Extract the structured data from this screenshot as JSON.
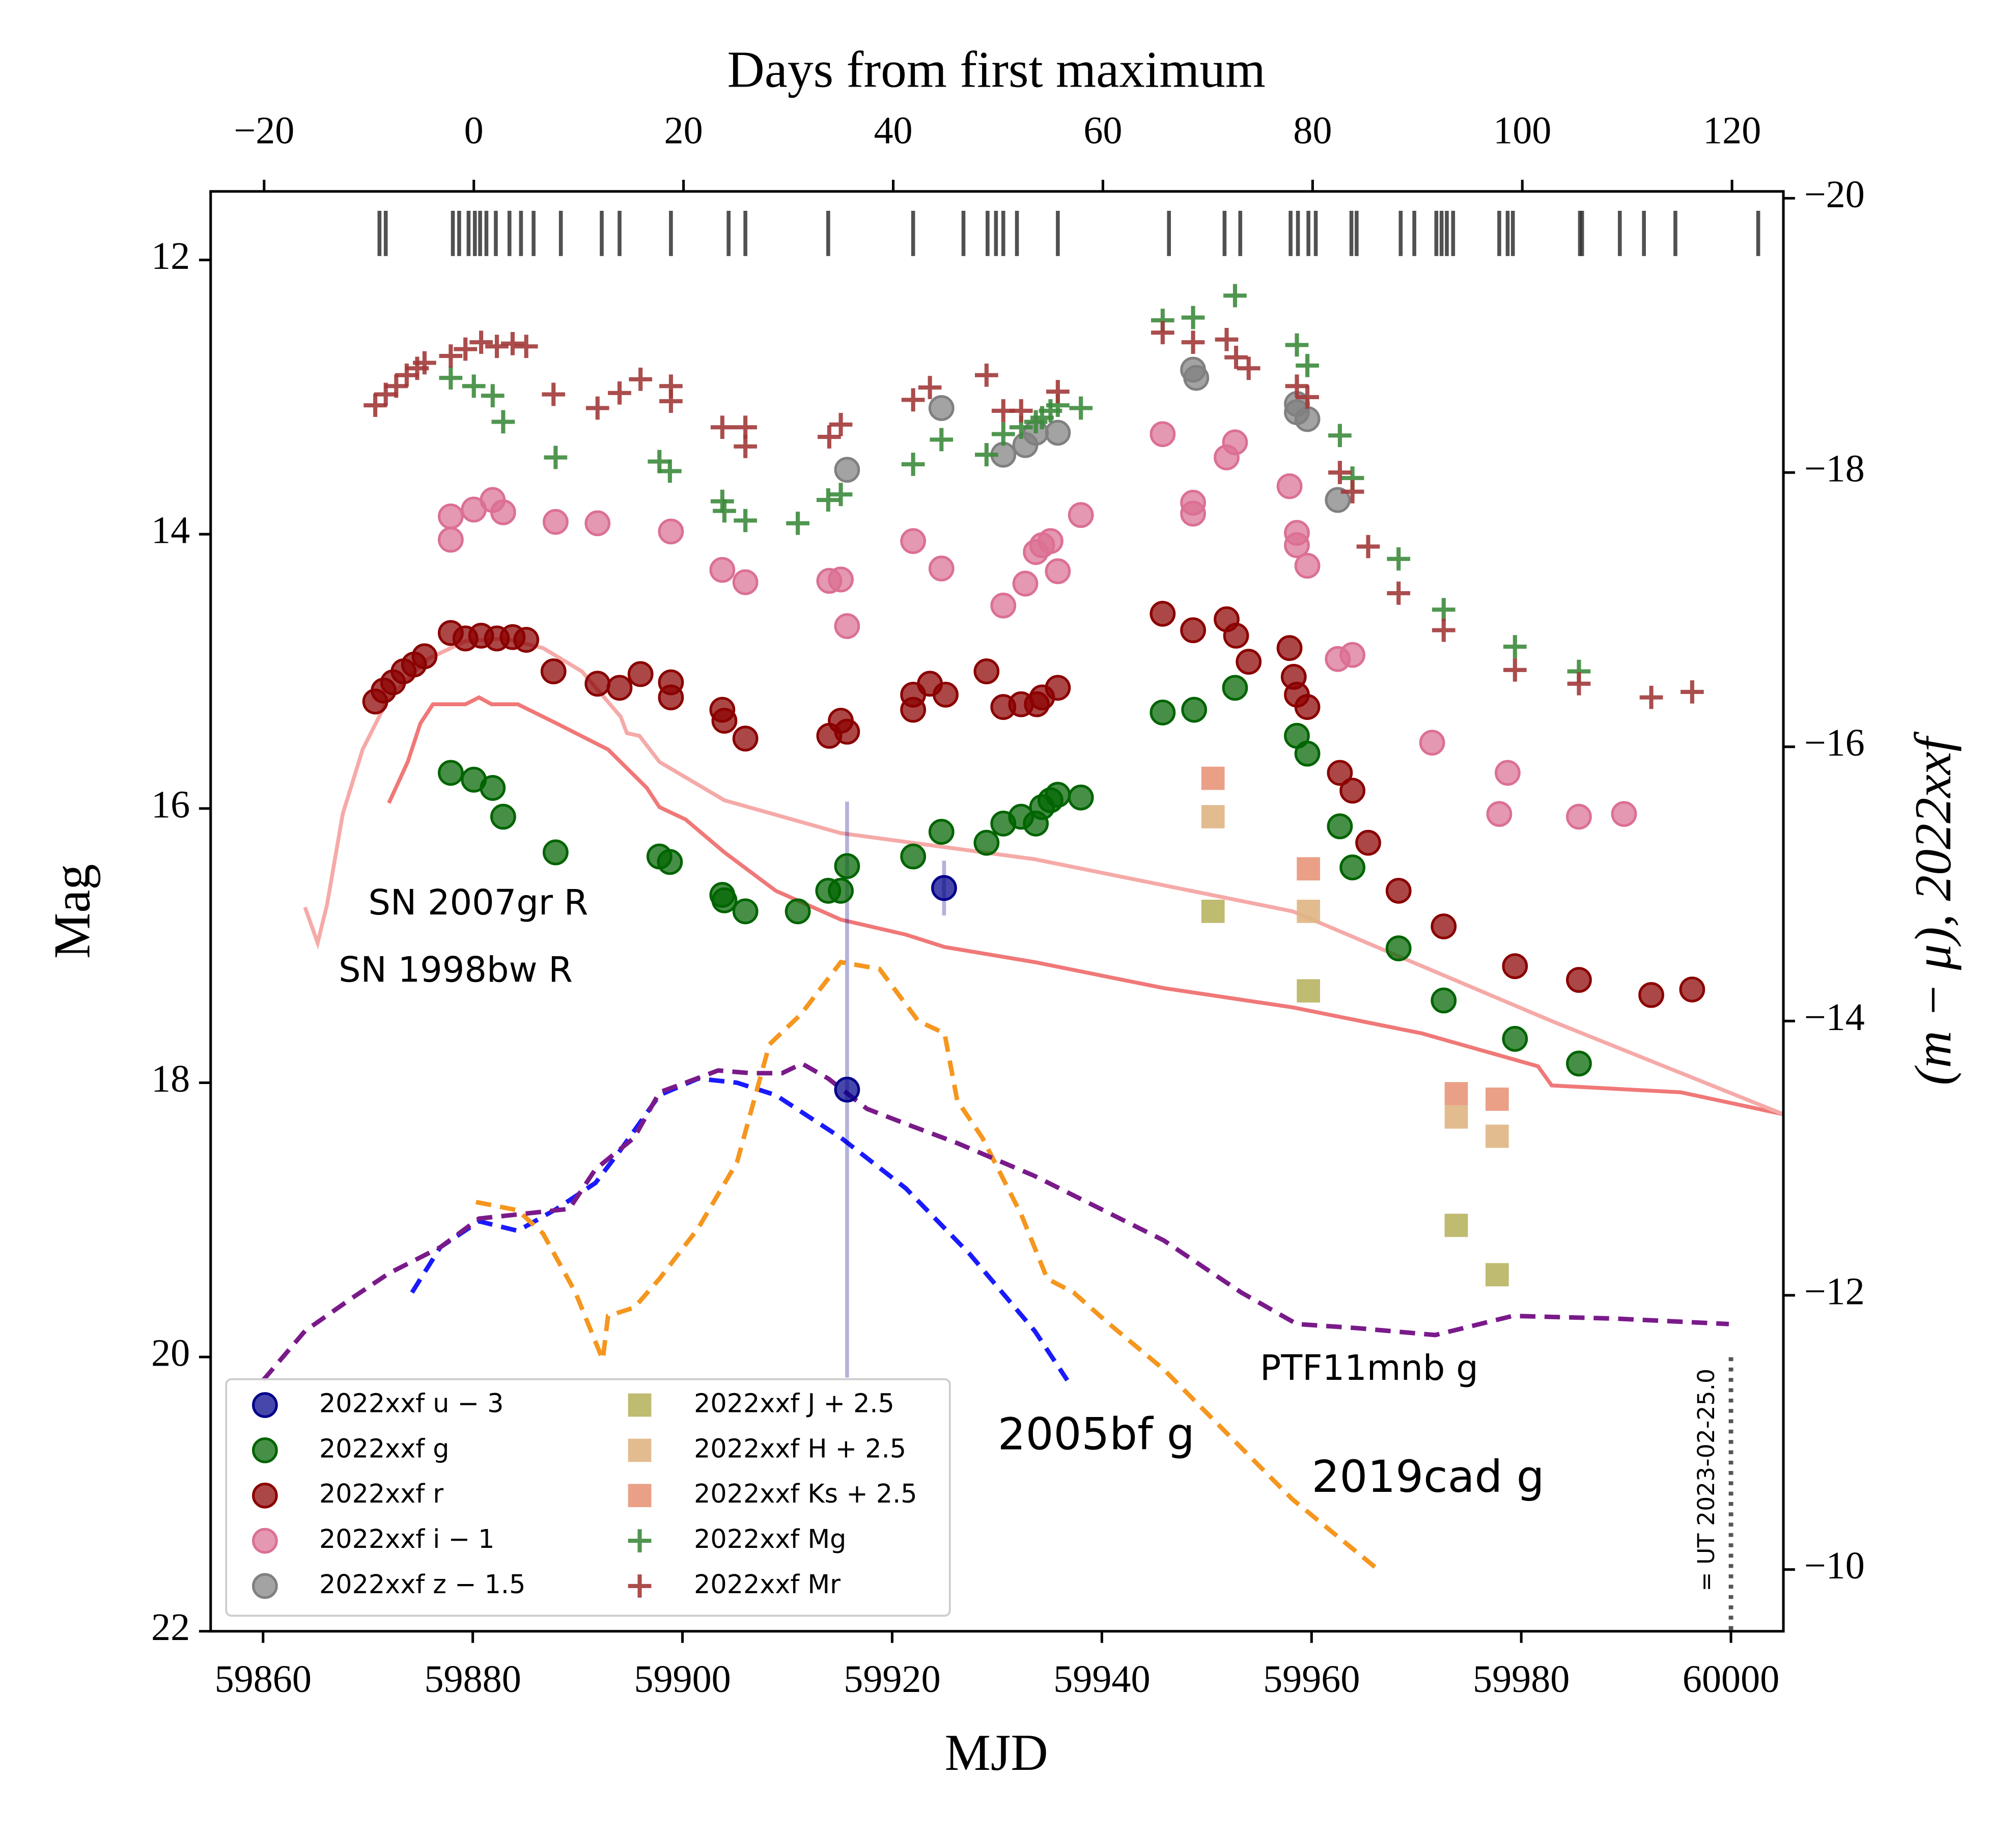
{
  "chart_data": {
    "type": "scatter",
    "xlabel": "MJD",
    "ylabel": "Mag",
    "top_xlabel": "Days from first maximum",
    "y2label": "(m − μ), 2022xxf",
    "xlim": [
      59855,
      60005
    ],
    "xticks": [
      59860,
      59880,
      59900,
      59920,
      59940,
      59960,
      59980,
      60000
    ],
    "ylim": [
      11.5,
      22
    ],
    "yticks": [
      12,
      14,
      16,
      18,
      20,
      22
    ],
    "y_inverted": true,
    "y2lim": [
      -20.05,
      -9.55
    ],
    "y2ticks": [
      {
        "value": -20,
        "label": "−20"
      },
      {
        "value": -18,
        "label": "−18"
      },
      {
        "value": -16,
        "label": "−16"
      },
      {
        "value": -14,
        "label": "−14"
      },
      {
        "value": -12,
        "label": "−12"
      },
      {
        "value": -10,
        "label": "−10"
      }
    ],
    "top_xlim": [
      -25.1,
      124.9
    ],
    "top_xticks": [
      {
        "value": -20,
        "label": "−20"
      },
      0,
      20,
      40,
      60,
      80,
      100,
      120
    ],
    "legend": "lower left",
    "series": [
      {
        "name": "2022xxf u − 3",
        "color": "#00008b",
        "marker": "circle",
        "x": [
          59924.95,
          59915.7
        ],
        "values": [
          16.58,
          18.05
        ],
        "errors": [
          0.2,
          2.1
        ]
      },
      {
        "name": "2022xxf g",
        "color": "#006400",
        "marker": "circle",
        "x": [
          59877.9,
          59880.1,
          59881.9,
          59882.9,
          59887.9,
          59897.8,
          59898.8,
          59903.8,
          59904.0,
          59906.0,
          59911.0,
          59913.9,
          59915.1,
          59915.7,
          59922.0,
          59924.7,
          59929.0,
          59930.6,
          59932.3,
          59933.7,
          59934.3,
          59935.1,
          59935.8,
          59938.0,
          59945.8,
          59948.8,
          59952.7,
          59958.6,
          59959.6,
          59962.7,
          59963.9,
          59968.3,
          59972.6,
          59979.4,
          59985.5
        ],
        "values": [
          15.74,
          15.79,
          15.85,
          16.06,
          16.32,
          16.35,
          16.39,
          16.63,
          16.67,
          16.75,
          16.75,
          16.6,
          16.6,
          16.42,
          16.35,
          16.17,
          16.25,
          16.11,
          16.06,
          16.11,
          15.99,
          15.94,
          15.9,
          15.92,
          15.3,
          15.28,
          15.12,
          15.47,
          15.6,
          16.13,
          16.43,
          17.02,
          17.4,
          17.68,
          17.86
        ]
      },
      {
        "name": "2022xxf r",
        "color": "#8b0000",
        "marker": "circle",
        "x": [
          59870.7,
          59871.5,
          59872.4,
          59873.4,
          59874.4,
          59875.4,
          59877.9,
          59879.3,
          59880.8,
          59882.3,
          59883.8,
          59885.1,
          59887.7,
          59891.9,
          59894.0,
          59896.0,
          59898.9,
          59898.9,
          59903.8,
          59904.0,
          59906.0,
          59914.0,
          59915.1,
          59915.7,
          59922.0,
          59922.0,
          59923.6,
          59925.1,
          59929.0,
          59930.6,
          59932.3,
          59933.8,
          59934.3,
          59935.8,
          59945.8,
          59948.7,
          59951.9,
          59952.8,
          59954.0,
          59957.9,
          59958.3,
          59958.6,
          59959.6,
          59962.7,
          59963.9,
          59965.4,
          59968.3,
          59972.6,
          59979.4,
          59985.5,
          59992.4,
          59996.3
        ],
        "values": [
          15.22,
          15.14,
          15.08,
          15.0,
          14.95,
          14.89,
          14.72,
          14.76,
          14.74,
          14.76,
          14.75,
          14.77,
          15.0,
          15.09,
          15.12,
          15.02,
          15.08,
          15.19,
          15.28,
          15.36,
          15.49,
          15.47,
          15.36,
          15.44,
          15.17,
          15.28,
          15.09,
          15.17,
          15.0,
          15.26,
          15.24,
          15.24,
          15.19,
          15.12,
          14.58,
          14.7,
          14.62,
          14.74,
          14.93,
          14.83,
          15.04,
          15.17,
          15.26,
          15.74,
          15.87,
          16.25,
          16.6,
          16.86,
          17.15,
          17.25,
          17.36,
          17.32
        ]
      },
      {
        "name": "2022xxf i − 1",
        "color": "#db7093",
        "marker": "circle",
        "x": [
          59877.9,
          59877.9,
          59880.1,
          59881.9,
          59882.9,
          59887.9,
          59891.9,
          59898.9,
          59903.8,
          59906.0,
          59914.0,
          59915.1,
          59915.7,
          59922.0,
          59924.7,
          59930.6,
          59932.7,
          59933.7,
          59934.3,
          59935.1,
          59935.8,
          59938.0,
          59945.8,
          59948.7,
          59948.7,
          59951.9,
          59952.7,
          59957.9,
          59958.6,
          59958.6,
          59959.6,
          59962.5,
          59963.9,
          59971.5,
          59978.7,
          59977.9,
          59985.5,
          59989.8
        ],
        "values": [
          13.87,
          14.04,
          13.82,
          13.75,
          13.84,
          13.91,
          13.92,
          13.98,
          14.26,
          14.35,
          14.34,
          14.33,
          14.67,
          14.05,
          14.25,
          14.52,
          14.36,
          14.13,
          14.08,
          14.05,
          14.27,
          13.86,
          13.27,
          13.77,
          13.85,
          13.44,
          13.33,
          13.65,
          13.99,
          14.08,
          14.23,
          14.91,
          14.88,
          15.52,
          15.74,
          16.04,
          16.06,
          16.04
        ]
      },
      {
        "name": "2022xxf z − 1.5",
        "color": "#808080",
        "marker": "circle",
        "x": [
          59915.7,
          59924.7,
          59930.6,
          59932.7,
          59933.7,
          59935.8,
          59948.7,
          59949.0,
          59958.6,
          59958.6,
          59959.6,
          59962.5
        ],
        "values": [
          13.53,
          13.08,
          13.42,
          13.35,
          13.26,
          13.26,
          12.8,
          12.86,
          13.05,
          13.11,
          13.16,
          13.75
        ]
      },
      {
        "name": "2022xxf J + 2.5",
        "color": "#b8b461",
        "marker": "square",
        "x": [
          59950.6,
          59959.7,
          59973.8,
          59977.7
        ],
        "values": [
          16.75,
          17.33,
          19.04,
          19.4
        ]
      },
      {
        "name": "2022xxf H + 2.5",
        "color": "#dfb583",
        "marker": "square",
        "x": [
          59950.6,
          59959.7,
          59973.8,
          59977.7
        ],
        "values": [
          16.06,
          16.75,
          18.25,
          18.39
        ]
      },
      {
        "name": "2022xxf Ks + 2.5",
        "color": "#e8967a",
        "marker": "square",
        "x": [
          59950.6,
          59959.7,
          59973.8,
          59977.7
        ],
        "values": [
          15.78,
          16.44,
          18.08,
          18.12
        ]
      },
      {
        "name": "2022xxf Mg",
        "color": "#3d8b3d",
        "marker": "plus",
        "axis": "y2",
        "x": [
          59877.9,
          59880.1,
          59881.9,
          59882.9,
          59887.9,
          59897.8,
          59898.8,
          59903.8,
          59904.0,
          59906.0,
          59911.0,
          59913.9,
          59915.1,
          59922.0,
          59924.7,
          59929.0,
          59930.6,
          59932.3,
          59933.7,
          59934.3,
          59935.1,
          59935.8,
          59938.0,
          59945.8,
          59948.7,
          59952.7,
          59958.6,
          59959.6,
          59962.7,
          59963.9,
          59968.3,
          59972.6,
          59979.4,
          59985.5
        ],
        "values": [
          -18.69,
          -18.63,
          -18.56,
          -18.37,
          -18.11,
          -18.08,
          -18.01,
          -17.79,
          -17.72,
          -17.65,
          -17.63,
          -17.8,
          -17.84,
          -18.06,
          -18.24,
          -18.13,
          -18.28,
          -18.33,
          -18.37,
          -18.4,
          -18.45,
          -18.49,
          -18.47,
          -19.11,
          -19.13,
          -19.29,
          -18.93,
          -18.78,
          -18.27,
          -17.96,
          -17.37,
          -17.0,
          -16.73,
          -16.55
        ]
      },
      {
        "name": "2022xxf Mr",
        "color": "#a23a3a",
        "marker": "plus",
        "axis": "y2",
        "x": [
          59870.7,
          59871.7,
          59872.7,
          59873.7,
          59874.7,
          59875.4,
          59877.9,
          59879.3,
          59880.8,
          59882.3,
          59883.8,
          59885.1,
          59887.7,
          59891.9,
          59894.0,
          59896.0,
          59898.9,
          59898.9,
          59903.8,
          59906.0,
          59906.0,
          59914.0,
          59915.1,
          59922.0,
          59923.6,
          59929.0,
          59930.6,
          59932.3,
          59935.8,
          59945.8,
          59948.7,
          59951.9,
          59952.8,
          59954.0,
          59958.6,
          59959.6,
          59962.7,
          59963.9,
          59965.4,
          59968.3,
          59972.6,
          59979.4,
          59985.5,
          59992.4,
          59996.3
        ],
        "values": [
          -18.49,
          -18.57,
          -18.63,
          -18.71,
          -18.76,
          -18.8,
          -18.85,
          -18.9,
          -18.95,
          -18.92,
          -18.94,
          -18.92,
          -18.57,
          -18.47,
          -18.58,
          -18.68,
          -18.63,
          -18.52,
          -18.33,
          -18.33,
          -18.19,
          -18.26,
          -18.35,
          -18.53,
          -18.62,
          -18.71,
          -18.45,
          -18.45,
          -18.59,
          -19.02,
          -18.95,
          -18.97,
          -18.84,
          -18.76,
          -18.63,
          -18.55,
          -18.0,
          -17.86,
          -17.46,
          -17.12,
          -16.85,
          -16.56,
          -16.46,
          -16.36,
          -16.4
        ]
      }
    ],
    "templates": [
      {
        "label": "SN 2007gr R",
        "color": "#f07878",
        "style": "solid",
        "x": [
          59872.0,
          59873.8,
          59875.0,
          59876.2,
          59879.3,
          59880.6,
          59881.8,
          59884.3,
          59888.0,
          59892.9,
          59896.6,
          59897.8,
          59900.3,
          59904.0,
          59908.9,
          59915.1,
          59921.3,
          59925.0,
          59933.6,
          59945.9,
          59958.2,
          59970.5,
          59981.6,
          59982.9,
          59995.2,
          60005.0
        ],
        "values": [
          15.96,
          15.66,
          15.38,
          15.24,
          15.24,
          15.19,
          15.24,
          15.24,
          15.38,
          15.57,
          15.85,
          15.99,
          16.08,
          16.32,
          16.6,
          16.81,
          16.92,
          17.01,
          17.12,
          17.31,
          17.45,
          17.64,
          17.88,
          18.02,
          18.07,
          18.23
        ]
      },
      {
        "label": "SN 1998bw R",
        "color": "#f5aaa8",
        "style": "solid",
        "x": [
          59864.0,
          59865.2,
          59866.1,
          59867.6,
          59869.5,
          59872.0,
          59875.7,
          59879.3,
          59883.0,
          59886.7,
          59890.4,
          59894.1,
          59894.7,
          59895.9,
          59897.8,
          59904.0,
          59915.1,
          59933.6,
          59958.2,
          59982.9,
          60005.0
        ],
        "values": [
          16.72,
          16.98,
          16.7,
          16.04,
          15.57,
          15.19,
          14.91,
          14.78,
          14.76,
          14.83,
          15.0,
          15.33,
          15.45,
          15.47,
          15.66,
          15.94,
          16.18,
          16.37,
          16.75,
          17.55,
          18.23
        ]
      },
      {
        "label": "2005bf g",
        "color": "#1a1aff",
        "style": "dashed",
        "x": [
          59874.2,
          59876.9,
          59880.6,
          59884.3,
          59888.0,
          59891.7,
          59894.1,
          59897.8,
          59901.5,
          59905.2,
          59908.9,
          59915.1,
          59921.3,
          59927.4,
          59933.6,
          59936.7
        ],
        "values": [
          19.53,
          19.2,
          19.01,
          19.08,
          18.92,
          18.73,
          18.49,
          18.09,
          17.97,
          18.0,
          18.09,
          18.4,
          18.77,
          19.25,
          19.81,
          20.17
        ]
      },
      {
        "label": "2019cad g",
        "color": "#f5961e",
        "style": "dashed",
        "x": [
          59880.3,
          59884.3,
          59886.7,
          59889.8,
          59892.4,
          59892.9,
          59895.4,
          59897.8,
          59901.5,
          59905.2,
          59908.3,
          59911.3,
          59915.1,
          59918.8,
          59922.5,
          59925.0,
          59926.2,
          59928.6,
          59932.3,
          59934.8,
          59937.3,
          59940.4,
          59945.9,
          59952.1,
          59958.2,
          59966.5
        ],
        "values": [
          18.87,
          18.93,
          19.1,
          19.53,
          20.02,
          19.7,
          19.64,
          19.43,
          19.06,
          18.58,
          17.72,
          17.5,
          17.12,
          17.17,
          17.55,
          17.64,
          18.13,
          18.4,
          18.96,
          19.43,
          19.53,
          19.74,
          20.09,
          20.57,
          21.04,
          21.56
        ]
      },
      {
        "label": "PTF11mnb g",
        "color": "#7a1a8a",
        "style": "dashed",
        "x": [
          59860.0,
          59864.0,
          59868.3,
          59872.0,
          59876.9,
          59880.6,
          59884.3,
          59889.2,
          59891.7,
          59895.4,
          59897.8,
          59900.3,
          59903.4,
          59906.5,
          59909.5,
          59911.4,
          59913.9,
          59917.6,
          59921.3,
          59926.2,
          59933.6,
          59945.9,
          59953.3,
          59958.6,
          59964.4,
          59971.8,
          59979.2,
          59989.0,
          59999.8
        ],
        "values": [
          20.17,
          19.81,
          19.58,
          19.39,
          19.2,
          18.99,
          18.96,
          18.92,
          18.63,
          18.4,
          18.07,
          18.0,
          17.91,
          17.93,
          17.93,
          17.86,
          17.97,
          18.19,
          18.3,
          18.44,
          18.68,
          19.15,
          19.53,
          19.76,
          19.79,
          19.84,
          19.7,
          19.72,
          19.76
        ]
      }
    ],
    "spectra_epochs": [
      59871.1,
      59871.7,
      59878.1,
      59878.7,
      59879.6,
      59880.2,
      59880.7,
      59881.3,
      59882.2,
      59883.5,
      59884.6,
      59885.8,
      59888.4,
      59892.3,
      59894.0,
      59898.9,
      59904.4,
      59906.0,
      59913.9,
      59922.0,
      59926.8,
      59929.1,
      59929.9,
      59930.6,
      59931.9,
      59935.8,
      59946.4,
      59951.7,
      59953.2,
      59958.0,
      59958.7,
      59959.7,
      59960.4,
      59963.8,
      59964.3,
      59968.5,
      59969.8,
      59971.9,
      59972.4,
      59972.9,
      59973.5,
      59977.9,
      59978.7,
      59979.2,
      59985.6,
      59985.8,
      59989.4,
      59991.7,
      59994.7,
      60002.6
    ],
    "reference_line": {
      "x": 60000,
      "label": "= UT 2023-02-25.0"
    }
  }
}
